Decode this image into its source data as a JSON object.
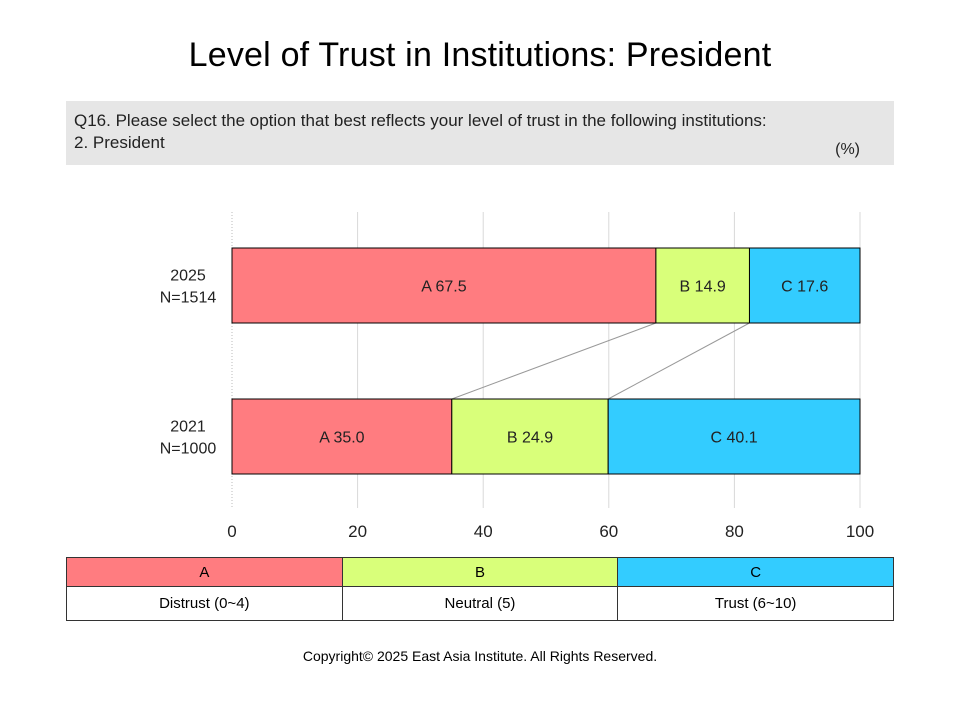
{
  "title": "Level of Trust in Institutions: President",
  "question": {
    "line1": "Q16. Please select the option that best reflects your level of trust in the following institutions:",
    "line2": "2. President",
    "unit": "(%)"
  },
  "chart_data": {
    "type": "bar",
    "orientation": "horizontal-stacked",
    "categories": [
      {
        "label": [
          "2025",
          "N=1514"
        ]
      },
      {
        "label": [
          "2021",
          "N=1000"
        ]
      }
    ],
    "series": [
      {
        "name": "A",
        "color": "#ff7c80",
        "values": [
          67.5,
          35.0
        ]
      },
      {
        "name": "B",
        "color": "#d9ff7a",
        "values": [
          14.9,
          24.9
        ]
      },
      {
        "name": "C",
        "color": "#33ccff",
        "values": [
          17.6,
          40.1
        ]
      }
    ],
    "xlim": [
      0,
      100
    ],
    "xticks": [
      "0",
      "20",
      "40",
      "60",
      "80",
      "100"
    ],
    "grid": true,
    "connector_lines": true
  },
  "legend": {
    "codes": [
      "A",
      "B",
      "C"
    ],
    "descriptions": [
      "Distrust (0~4)",
      "Neutral (5)",
      "Trust (6~10)"
    ],
    "colors": [
      "#ff7c80",
      "#d9ff7a",
      "#33ccff"
    ]
  },
  "copyright": "Copyright© 2025 East Asia Institute. All Rights Reserved."
}
